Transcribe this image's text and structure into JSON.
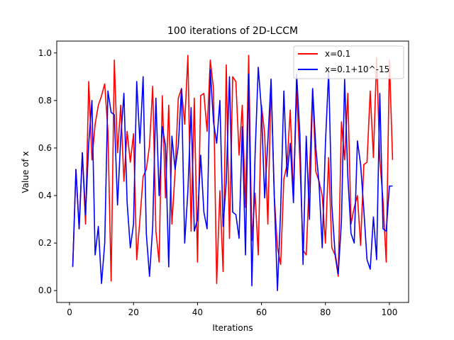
{
  "chart_data": {
    "type": "line",
    "title": "100 iterations of 2D-LCCM",
    "xlabel": "Iterations",
    "ylabel": "Value of x",
    "xlim": [
      -4,
      106
    ],
    "ylim": [
      -0.05,
      1.05
    ],
    "xticks": [
      0,
      20,
      40,
      60,
      80,
      100
    ],
    "yticks": [
      0.0,
      0.2,
      0.4,
      0.6,
      0.8,
      1.0
    ],
    "xtick_labels": [
      "0",
      "20",
      "40",
      "60",
      "80",
      "100"
    ],
    "ytick_labels": [
      "0.0",
      "0.2",
      "0.4",
      "0.6",
      "0.8",
      "1.0"
    ],
    "grid": false,
    "legend_position": "top-right",
    "x": [
      1,
      2,
      3,
      4,
      5,
      6,
      7,
      8,
      9,
      10,
      11,
      12,
      13,
      14,
      15,
      16,
      17,
      18,
      19,
      20,
      21,
      22,
      23,
      24,
      25,
      26,
      27,
      28,
      29,
      30,
      31,
      32,
      33,
      34,
      35,
      36,
      37,
      38,
      39,
      40,
      41,
      42,
      43,
      44,
      45,
      46,
      47,
      48,
      49,
      50,
      51,
      52,
      53,
      54,
      55,
      56,
      57,
      58,
      59,
      60,
      61,
      62,
      63,
      64,
      65,
      66,
      67,
      68,
      69,
      70,
      71,
      72,
      73,
      74,
      75,
      76,
      77,
      78,
      79,
      80,
      81,
      82,
      83,
      84,
      85,
      86,
      87,
      88,
      89,
      90,
      91,
      92,
      93,
      94,
      95,
      96,
      97,
      98,
      99,
      100,
      101
    ],
    "series": [
      {
        "name": "x=0.1",
        "color": "#ff0000",
        "values": [
          0.1,
          0.51,
          0.26,
          0.58,
          0.28,
          0.88,
          0.55,
          0.7,
          0.78,
          0.82,
          0.87,
          0.67,
          0.04,
          0.97,
          0.58,
          0.78,
          0.46,
          0.67,
          0.54,
          0.66,
          0.13,
          0.3,
          0.48,
          0.51,
          0.61,
          0.86,
          0.25,
          0.12,
          0.82,
          0.39,
          0.78,
          0.28,
          0.5,
          0.81,
          0.85,
          0.7,
          0.99,
          0.25,
          0.81,
          0.12,
          0.82,
          0.83,
          0.67,
          0.97,
          0.85,
          0.03,
          0.42,
          0.08,
          0.95,
          0.22,
          0.9,
          0.88,
          0.57,
          0.78,
          0.35,
          0.99,
          0.21,
          0.41,
          0.15,
          0.78,
          0.66,
          0.28,
          0.88,
          0.4,
          0.18,
          0.11,
          0.47,
          0.53,
          0.76,
          0.4,
          0.84,
          0.55,
          0.17,
          0.15,
          0.49,
          0.85,
          0.5,
          0.46,
          0.4,
          0.2,
          0.56,
          0.18,
          0.15,
          0.06,
          0.71,
          0.55,
          0.83,
          0.28,
          0.35,
          0.4,
          0.19,
          0.53,
          0.54,
          0.84,
          0.56,
          0.98,
          0.55,
          0.38,
          0.12,
          0.97,
          0.55
        ]
      },
      {
        "name": "x=0.1+10^-15",
        "color": "#0000ff",
        "values": [
          0.1,
          0.51,
          0.26,
          0.58,
          0.32,
          0.62,
          0.8,
          0.15,
          0.27,
          0.03,
          0.2,
          0.84,
          0.75,
          0.74,
          0.36,
          0.64,
          0.83,
          0.37,
          0.18,
          0.28,
          0.88,
          0.62,
          0.9,
          0.24,
          0.06,
          0.27,
          0.81,
          0.4,
          0.69,
          0.61,
          0.1,
          0.65,
          0.51,
          0.61,
          0.85,
          0.2,
          0.42,
          0.77,
          0.25,
          0.3,
          0.57,
          0.33,
          0.26,
          0.93,
          0.71,
          0.62,
          0.8,
          0.27,
          0.46,
          0.9,
          0.33,
          0.32,
          0.22,
          0.69,
          0.15,
          0.91,
          0.02,
          0.57,
          0.94,
          0.76,
          0.39,
          0.63,
          0.89,
          0.4,
          0.0,
          0.34,
          0.84,
          0.48,
          0.62,
          0.37,
          0.91,
          0.66,
          0.11,
          0.65,
          0.3,
          0.85,
          0.6,
          0.45,
          0.18,
          0.62,
          0.92,
          0.36,
          0.16,
          0.07,
          0.29,
          0.89,
          0.48,
          0.24,
          0.2,
          0.63,
          0.53,
          0.34,
          0.13,
          0.09,
          0.31,
          0.13,
          0.83,
          0.26,
          0.25,
          0.44,
          0.44
        ]
      }
    ]
  }
}
